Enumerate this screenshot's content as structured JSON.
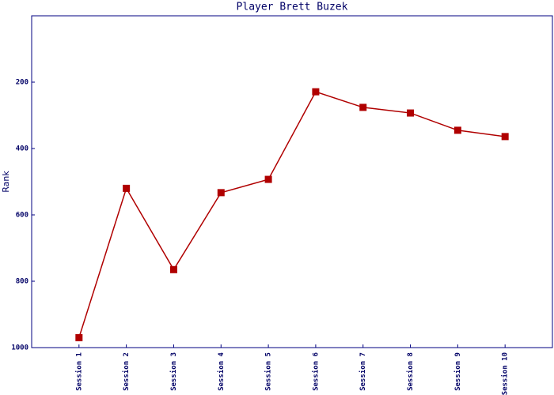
{
  "chart_data": {
    "type": "line",
    "title": "Player Brett Buzek",
    "y_label": "Rank",
    "categories": [
      "Session 1",
      "Session 2",
      "Session 3",
      "Session 4",
      "Session 5",
      "Session 6",
      "Session 7",
      "Session 8",
      "Session 9",
      "Session 10"
    ],
    "series": [
      {
        "name": "Rank",
        "color": "#b00000",
        "values": [
          970,
          520,
          765,
          533,
          493,
          229,
          276,
          293,
          345,
          364
        ]
      }
    ],
    "ylim": [
      1000,
      0
    ],
    "yticks": [
      200,
      400,
      600,
      800,
      1000
    ],
    "grid": false
  }
}
